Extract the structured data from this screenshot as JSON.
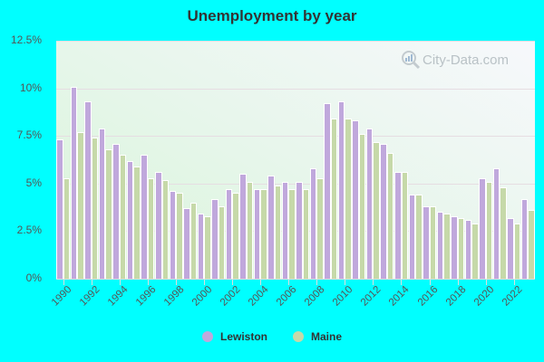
{
  "chart_data": {
    "type": "bar",
    "title": "Unemployment by year",
    "xlabel": "",
    "ylabel": "",
    "ylim": [
      0,
      12.5
    ],
    "yticks": [
      "0%",
      "2.5%",
      "5%",
      "7.5%",
      "10%",
      "12.5%"
    ],
    "grid": true,
    "legend_position": "bottom",
    "categories": [
      "1990",
      "1991",
      "1992",
      "1993",
      "1994",
      "1995",
      "1996",
      "1997",
      "1998",
      "1999",
      "2000",
      "2001",
      "2002",
      "2003",
      "2004",
      "2005",
      "2006",
      "2007",
      "2008",
      "2009",
      "2010",
      "2011",
      "2012",
      "2013",
      "2014",
      "2015",
      "2016",
      "2017",
      "2018",
      "2019",
      "2020",
      "2021",
      "2022",
      "2023"
    ],
    "xtick_labels": [
      "1990",
      "1992",
      "1994",
      "1996",
      "1998",
      "2000",
      "2002",
      "2004",
      "2006",
      "2008",
      "2010",
      "2012",
      "2014",
      "2016",
      "2018",
      "2020",
      "2022"
    ],
    "series": [
      {
        "name": "Lewiston",
        "color": "#c0a8dc",
        "values": [
          7.3,
          10.1,
          9.3,
          7.9,
          7.1,
          6.2,
          6.5,
          5.6,
          4.6,
          3.7,
          3.4,
          4.2,
          4.7,
          5.5,
          4.7,
          5.4,
          5.1,
          5.1,
          5.8,
          9.2,
          9.3,
          8.3,
          7.9,
          7.1,
          5.6,
          4.4,
          3.8,
          3.5,
          3.3,
          3.1,
          5.3,
          5.8,
          3.2,
          4.2
        ]
      },
      {
        "name": "Maine",
        "color": "#c6d9a9",
        "values": [
          5.3,
          7.7,
          7.4,
          6.8,
          6.5,
          5.9,
          5.3,
          5.2,
          4.5,
          4.0,
          3.3,
          3.8,
          4.5,
          5.1,
          4.7,
          4.9,
          4.7,
          4.7,
          5.3,
          8.4,
          8.4,
          7.6,
          7.2,
          6.6,
          5.6,
          4.4,
          3.8,
          3.4,
          3.2,
          2.9,
          5.1,
          4.8,
          2.9,
          3.6
        ]
      }
    ]
  },
  "page": {
    "title": "Unemployment by year",
    "watermark": "City-Data.com",
    "legend": [
      {
        "label": "Lewiston",
        "color": "#c0a8dc"
      },
      {
        "label": "Maine",
        "color": "#c6d9a9"
      }
    ]
  }
}
